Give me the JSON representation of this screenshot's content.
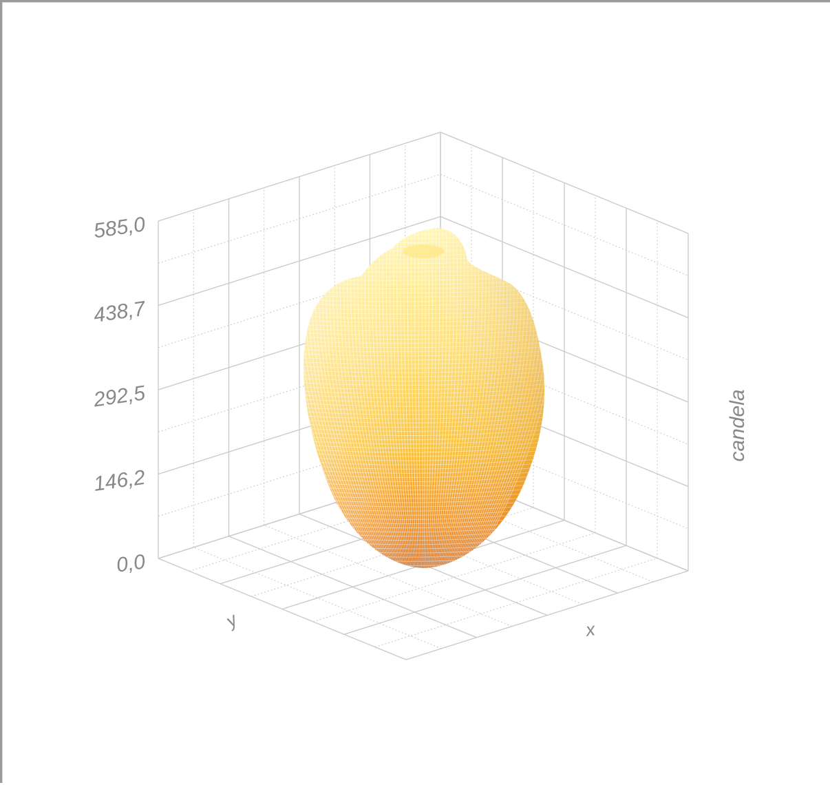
{
  "chart_data": {
    "type": "surface3d",
    "title": "",
    "zlabel": "candela",
    "xlabel": "x",
    "ylabel": "y",
    "zlim": [
      0,
      585.0
    ],
    "z_ticks": [
      "0,0",
      "146,2",
      "292,5",
      "438,7",
      "585,0"
    ],
    "surface": "photometric intensity distribution solid (teardrop shape), peak near 585 candela",
    "colors": {
      "low": "#d2691e",
      "mid": "#ffb020",
      "high": "#fff3a0",
      "grid": "#c8c8c8",
      "label": "#888888"
    }
  }
}
